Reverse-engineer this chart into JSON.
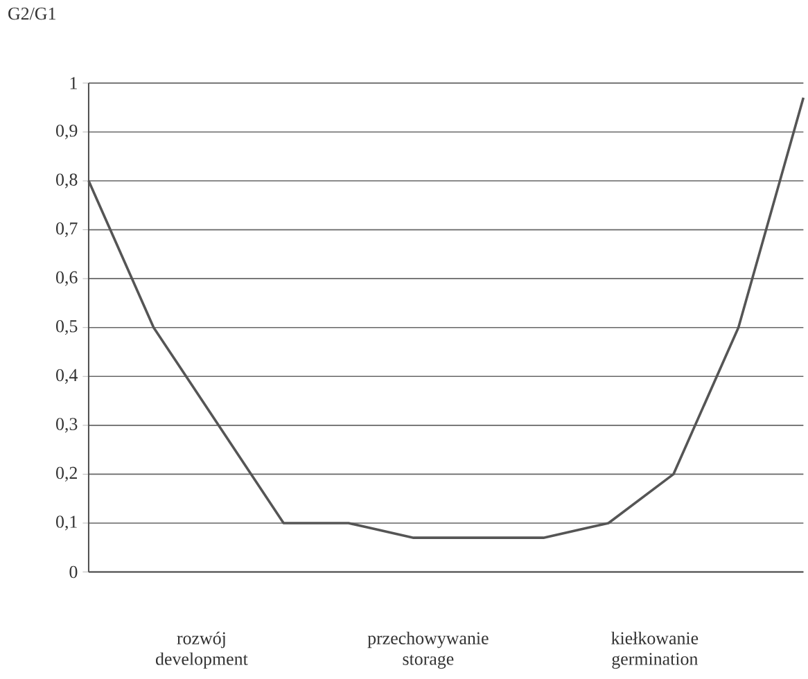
{
  "chart_data": {
    "type": "line",
    "ylabel": "G2/G1",
    "categories": [
      null,
      null,
      null,
      null,
      null,
      null,
      null,
      null,
      null,
      null,
      null,
      null
    ],
    "series": [
      {
        "color": "#555555",
        "values": [
          0.8,
          0.5,
          0.3,
          0.1,
          0.1,
          0.07,
          0.07,
          0.07,
          0.1,
          0.2,
          0.5,
          0.97
        ]
      }
    ],
    "ylim": [
      0,
      1
    ],
    "yticks": [
      0,
      {
        "value": 0.1,
        "label": "0,1"
      },
      {
        "value": 0.2,
        "label": "0,2"
      },
      {
        "value": 0.3,
        "label": "0,3"
      },
      {
        "value": 0.4,
        "label": "0,4"
      },
      {
        "value": 0.5,
        "label": "0,5"
      },
      {
        "value": 0.6,
        "label": "0,6"
      },
      {
        "value": 0.7,
        "label": "0,7"
      },
      {
        "value": 0.8,
        "label": "0,8"
      },
      {
        "value": 0.9,
        "label": "0,9"
      },
      1
    ],
    "annotations": [
      "rozwój development",
      "przechowywanie storage",
      "kiełkowanie germination"
    ],
    "grid": "y",
    "tick_labels": "y",
    "marker": "none",
    "line_style": "solid"
  }
}
